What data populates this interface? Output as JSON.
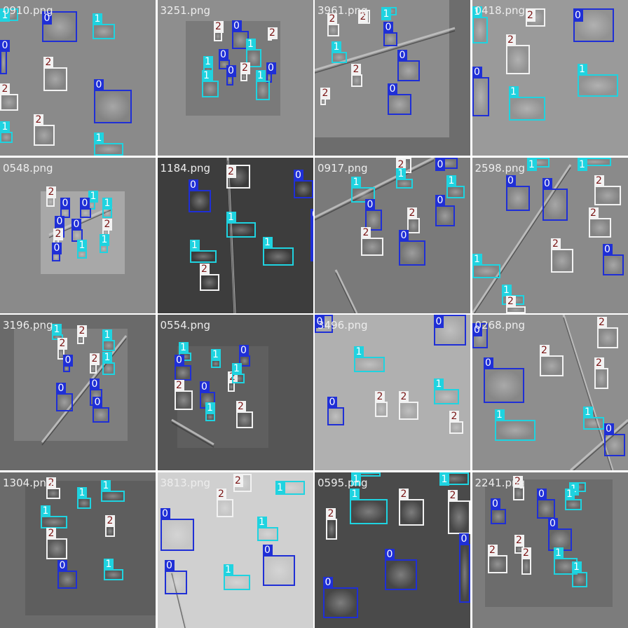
{
  "classes": {
    "0": {
      "color": "#1f2fd6",
      "tag_text_color": "#ffffff"
    },
    "1": {
      "color": "#1fd3e0",
      "tag_text_color": "#ffffff"
    },
    "2": {
      "color": "#f2f2f2",
      "tag_text_color": "#7a1414"
    }
  },
  "tiles": [
    {
      "file": "0910.png"
    },
    {
      "file": "3251.png"
    },
    {
      "file": "3961.png"
    },
    {
      "file": "0418.png"
    },
    {
      "file": "0548.png"
    },
    {
      "file": "1184.png"
    },
    {
      "file": "0917.png"
    },
    {
      "file": "2598.png"
    },
    {
      "file": "3196.png"
    },
    {
      "file": "0554.png"
    },
    {
      "file": "3496.png"
    },
    {
      "file": "0268.png"
    },
    {
      "file": "1304.png"
    },
    {
      "file": "3813.png"
    },
    {
      "file": "0595.png"
    },
    {
      "file": "2241.png"
    }
  ],
  "detection_labels": [
    "0",
    "1",
    "2"
  ]
}
